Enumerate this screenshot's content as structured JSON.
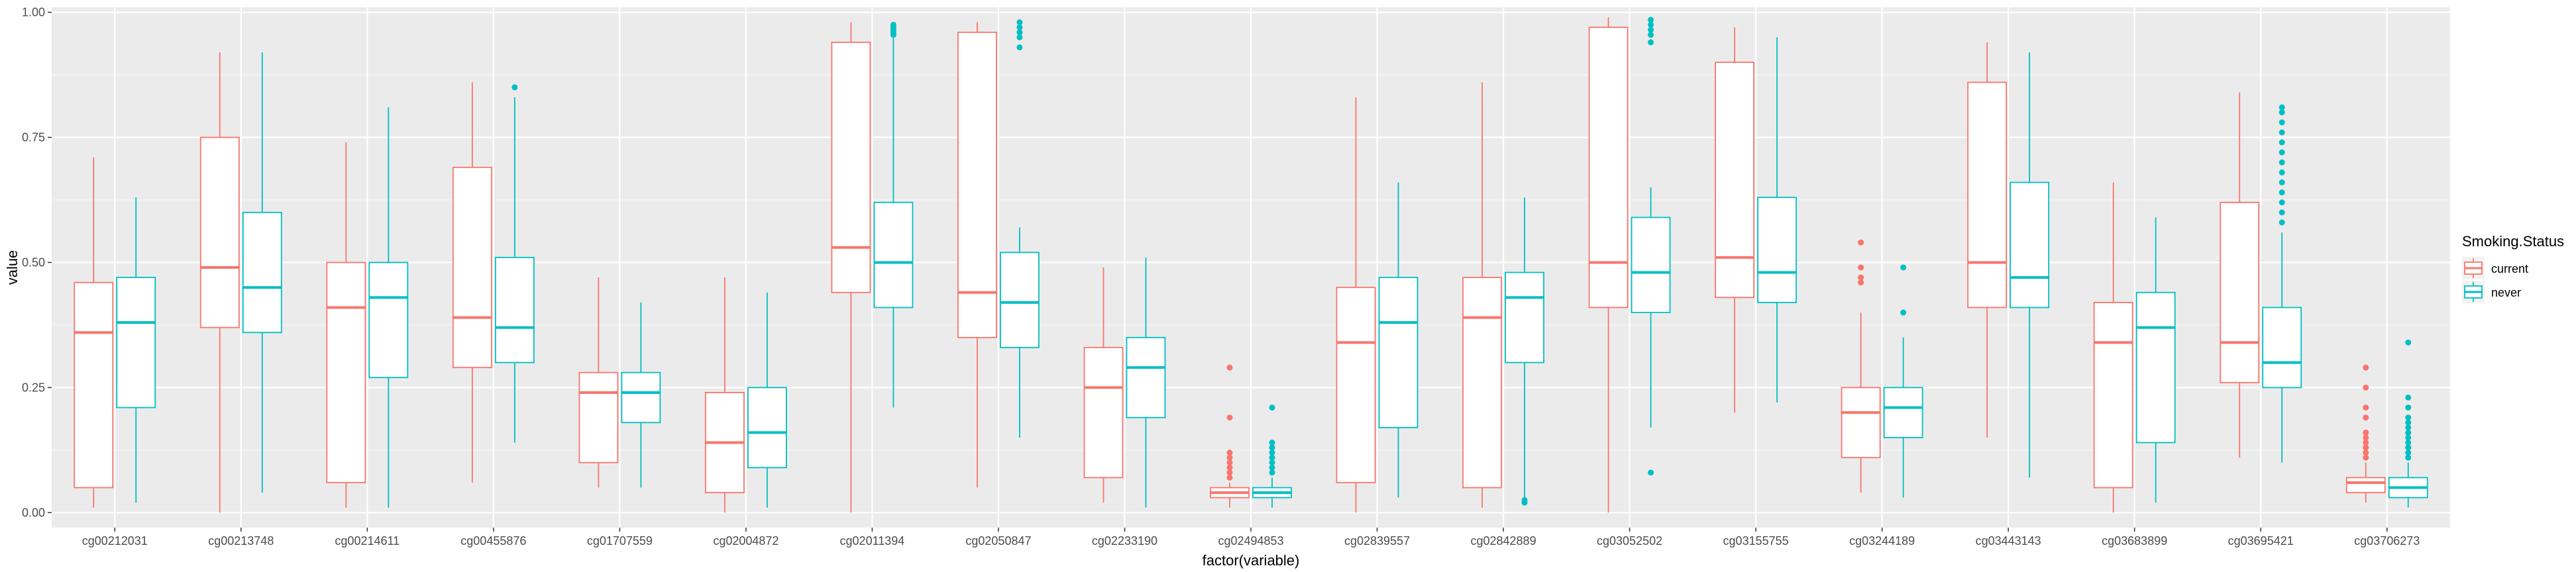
{
  "chart_data": {
    "type": "boxplot",
    "title": "",
    "xlabel": "factor(variable)",
    "ylabel": "value",
    "ylim": [
      -0.03,
      1.01
    ],
    "yticks": [
      0.0,
      0.25,
      0.5,
      0.75,
      1.0
    ],
    "yticklabels": [
      "0.00",
      "0.25",
      "0.50",
      "0.75",
      "1.00"
    ],
    "grid": true,
    "legend": {
      "title": "Smoking.Status",
      "position": "right"
    },
    "categories": [
      "cg00212031",
      "cg00213748",
      "cg00214611",
      "cg00455876",
      "cg01707559",
      "cg02004872",
      "cg02011394",
      "cg02050847",
      "cg02233190",
      "cg02494853",
      "cg02839557",
      "cg02842889",
      "cg03052502",
      "cg03155755",
      "cg03244189",
      "cg03443143",
      "cg03683899",
      "cg03695421",
      "cg03706273"
    ],
    "series": [
      {
        "name": "current",
        "color": "#F8766D",
        "boxes": [
          {
            "whisker_low": 0.01,
            "q1": 0.05,
            "median": 0.36,
            "q3": 0.46,
            "whisker_high": 0.71,
            "outliers": []
          },
          {
            "whisker_low": 0.0,
            "q1": 0.37,
            "median": 0.49,
            "q3": 0.75,
            "whisker_high": 0.92,
            "outliers": []
          },
          {
            "whisker_low": 0.01,
            "q1": 0.06,
            "median": 0.41,
            "q3": 0.5,
            "whisker_high": 0.74,
            "outliers": []
          },
          {
            "whisker_low": 0.06,
            "q1": 0.29,
            "median": 0.39,
            "q3": 0.69,
            "whisker_high": 0.86,
            "outliers": []
          },
          {
            "whisker_low": 0.05,
            "q1": 0.1,
            "median": 0.24,
            "q3": 0.28,
            "whisker_high": 0.47,
            "outliers": []
          },
          {
            "whisker_low": 0.0,
            "q1": 0.04,
            "median": 0.14,
            "q3": 0.24,
            "whisker_high": 0.47,
            "outliers": []
          },
          {
            "whisker_low": 0.0,
            "q1": 0.44,
            "median": 0.53,
            "q3": 0.94,
            "whisker_high": 0.98,
            "outliers": []
          },
          {
            "whisker_low": 0.05,
            "q1": 0.35,
            "median": 0.44,
            "q3": 0.96,
            "whisker_high": 0.98,
            "outliers": []
          },
          {
            "whisker_low": 0.02,
            "q1": 0.07,
            "median": 0.25,
            "q3": 0.33,
            "whisker_high": 0.49,
            "outliers": []
          },
          {
            "whisker_low": 0.01,
            "q1": 0.03,
            "median": 0.04,
            "q3": 0.05,
            "whisker_high": 0.06,
            "outliers": [
              0.07,
              0.08,
              0.09,
              0.1,
              0.11,
              0.12,
              0.19,
              0.29
            ]
          },
          {
            "whisker_low": 0.0,
            "q1": 0.06,
            "median": 0.34,
            "q3": 0.45,
            "whisker_high": 0.83,
            "outliers": []
          },
          {
            "whisker_low": 0.01,
            "q1": 0.05,
            "median": 0.39,
            "q3": 0.47,
            "whisker_high": 0.86,
            "outliers": []
          },
          {
            "whisker_low": 0.0,
            "q1": 0.41,
            "median": 0.5,
            "q3": 0.97,
            "whisker_high": 0.99,
            "outliers": []
          },
          {
            "whisker_low": 0.2,
            "q1": 0.43,
            "median": 0.51,
            "q3": 0.9,
            "whisker_high": 0.97,
            "outliers": []
          },
          {
            "whisker_low": 0.04,
            "q1": 0.11,
            "median": 0.2,
            "q3": 0.25,
            "whisker_high": 0.4,
            "outliers": [
              0.46,
              0.47,
              0.49,
              0.54
            ]
          },
          {
            "whisker_low": 0.15,
            "q1": 0.41,
            "median": 0.5,
            "q3": 0.86,
            "whisker_high": 0.94,
            "outliers": []
          },
          {
            "whisker_low": 0.0,
            "q1": 0.05,
            "median": 0.34,
            "q3": 0.42,
            "whisker_high": 0.66,
            "outliers": []
          },
          {
            "whisker_low": 0.11,
            "q1": 0.26,
            "median": 0.34,
            "q3": 0.62,
            "whisker_high": 0.84,
            "outliers": []
          },
          {
            "whisker_low": 0.02,
            "q1": 0.04,
            "median": 0.06,
            "q3": 0.07,
            "whisker_high": 0.1,
            "outliers": [
              0.11,
              0.12,
              0.13,
              0.14,
              0.15,
              0.16,
              0.19,
              0.21,
              0.25,
              0.29
            ]
          }
        ]
      },
      {
        "name": "never",
        "color": "#00BFC4",
        "boxes": [
          {
            "whisker_low": 0.02,
            "q1": 0.21,
            "median": 0.38,
            "q3": 0.47,
            "whisker_high": 0.63,
            "outliers": []
          },
          {
            "whisker_low": 0.04,
            "q1": 0.36,
            "median": 0.45,
            "q3": 0.6,
            "whisker_high": 0.92,
            "outliers": []
          },
          {
            "whisker_low": 0.01,
            "q1": 0.27,
            "median": 0.43,
            "q3": 0.5,
            "whisker_high": 0.81,
            "outliers": []
          },
          {
            "whisker_low": 0.14,
            "q1": 0.3,
            "median": 0.37,
            "q3": 0.51,
            "whisker_high": 0.83,
            "outliers": [
              0.85
            ]
          },
          {
            "whisker_low": 0.05,
            "q1": 0.18,
            "median": 0.24,
            "q3": 0.28,
            "whisker_high": 0.42,
            "outliers": []
          },
          {
            "whisker_low": 0.01,
            "q1": 0.09,
            "median": 0.16,
            "q3": 0.25,
            "whisker_high": 0.44,
            "outliers": []
          },
          {
            "whisker_low": 0.21,
            "q1": 0.41,
            "median": 0.5,
            "q3": 0.62,
            "whisker_high": 0.95,
            "outliers": [
              0.955,
              0.96,
              0.965,
              0.97,
              0.975
            ]
          },
          {
            "whisker_low": 0.15,
            "q1": 0.33,
            "median": 0.42,
            "q3": 0.52,
            "whisker_high": 0.57,
            "outliers": [
              0.93,
              0.95,
              0.96,
              0.97,
              0.98
            ]
          },
          {
            "whisker_low": 0.01,
            "q1": 0.19,
            "median": 0.29,
            "q3": 0.35,
            "whisker_high": 0.51,
            "outliers": []
          },
          {
            "whisker_low": 0.01,
            "q1": 0.03,
            "median": 0.04,
            "q3": 0.05,
            "whisker_high": 0.07,
            "outliers": [
              0.08,
              0.09,
              0.1,
              0.11,
              0.12,
              0.13,
              0.14,
              0.21
            ]
          },
          {
            "whisker_low": 0.03,
            "q1": 0.17,
            "median": 0.38,
            "q3": 0.47,
            "whisker_high": 0.66,
            "outliers": []
          },
          {
            "whisker_low": 0.03,
            "q1": 0.3,
            "median": 0.43,
            "q3": 0.48,
            "whisker_high": 0.63,
            "outliers": [
              0.02,
              0.025
            ]
          },
          {
            "whisker_low": 0.17,
            "q1": 0.4,
            "median": 0.48,
            "q3": 0.59,
            "whisker_high": 0.65,
            "outliers": [
              0.08,
              0.94,
              0.955,
              0.965,
              0.975,
              0.985
            ]
          },
          {
            "whisker_low": 0.22,
            "q1": 0.42,
            "median": 0.48,
            "q3": 0.63,
            "whisker_high": 0.95,
            "outliers": []
          },
          {
            "whisker_low": 0.03,
            "q1": 0.15,
            "median": 0.21,
            "q3": 0.25,
            "whisker_high": 0.35,
            "outliers": [
              0.4,
              0.49
            ]
          },
          {
            "whisker_low": 0.07,
            "q1": 0.41,
            "median": 0.47,
            "q3": 0.66,
            "whisker_high": 0.92,
            "outliers": []
          },
          {
            "whisker_low": 0.02,
            "q1": 0.14,
            "median": 0.37,
            "q3": 0.44,
            "whisker_high": 0.59,
            "outliers": []
          },
          {
            "whisker_low": 0.1,
            "q1": 0.25,
            "median": 0.3,
            "q3": 0.41,
            "whisker_high": 0.56,
            "outliers": [
              0.58,
              0.6,
              0.62,
              0.64,
              0.66,
              0.68,
              0.7,
              0.72,
              0.74,
              0.76,
              0.78,
              0.8,
              0.81
            ]
          },
          {
            "whisker_low": 0.01,
            "q1": 0.03,
            "median": 0.05,
            "q3": 0.07,
            "whisker_high": 0.1,
            "outliers": [
              0.11,
              0.12,
              0.13,
              0.14,
              0.15,
              0.16,
              0.17,
              0.18,
              0.19,
              0.21,
              0.23,
              0.34
            ]
          }
        ]
      }
    ]
  }
}
